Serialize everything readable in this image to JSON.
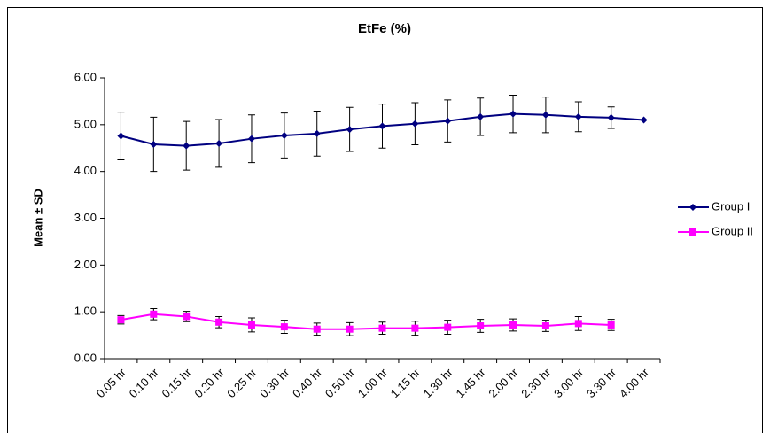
{
  "chart_data": {
    "type": "line",
    "title": "EtFe (%)",
    "y_label": "Mean ± SD",
    "categories": [
      "0.05 hr",
      "0.10 hr",
      "0.15 hr",
      "0.20 hr",
      "0.25 hr",
      "0.30 hr",
      "0.40 hr",
      "0.50 hr",
      "1.00 hr",
      "1.15 hr",
      "1.30 hr",
      "1.45 hr",
      "2.00 hr",
      "2.30 hr",
      "3.00 hr",
      "3.30 hr",
      "4.00 hr"
    ],
    "series": [
      {
        "name": "Group I",
        "color": "#000080",
        "marker": "diamond",
        "values": [
          4.76,
          4.58,
          4.55,
          4.6,
          4.7,
          4.77,
          4.81,
          4.9,
          4.97,
          5.02,
          5.08,
          5.17,
          5.23,
          5.21,
          5.17,
          5.15,
          5.1
        ],
        "errors": [
          0.51,
          0.58,
          0.52,
          0.51,
          0.51,
          0.48,
          0.48,
          0.47,
          0.47,
          0.45,
          0.45,
          0.4,
          0.4,
          0.38,
          0.32,
          0.23,
          null
        ]
      },
      {
        "name": "Group II",
        "color": "#ff00ff",
        "marker": "square",
        "values": [
          0.83,
          0.95,
          0.9,
          0.78,
          0.72,
          0.68,
          0.63,
          0.63,
          0.65,
          0.65,
          0.67,
          0.7,
          0.72,
          0.7,
          0.75,
          0.72,
          null
        ],
        "errors": [
          0.09,
          0.12,
          0.11,
          0.12,
          0.15,
          0.14,
          0.13,
          0.14,
          0.13,
          0.15,
          0.15,
          0.14,
          0.13,
          0.12,
          0.15,
          0.12,
          null
        ]
      }
    ],
    "ylim": [
      0,
      6
    ],
    "yticks": [
      {
        "value": 0,
        "label": "0.00"
      },
      {
        "value": 1,
        "label": "1.00"
      },
      {
        "value": 2,
        "label": "2.00"
      },
      {
        "value": 3,
        "label": "3.00"
      },
      {
        "value": 4,
        "label": "4.00"
      },
      {
        "value": 5,
        "label": "5.00"
      },
      {
        "value": 6,
        "label": "6.00"
      }
    ],
    "legend": "right"
  }
}
